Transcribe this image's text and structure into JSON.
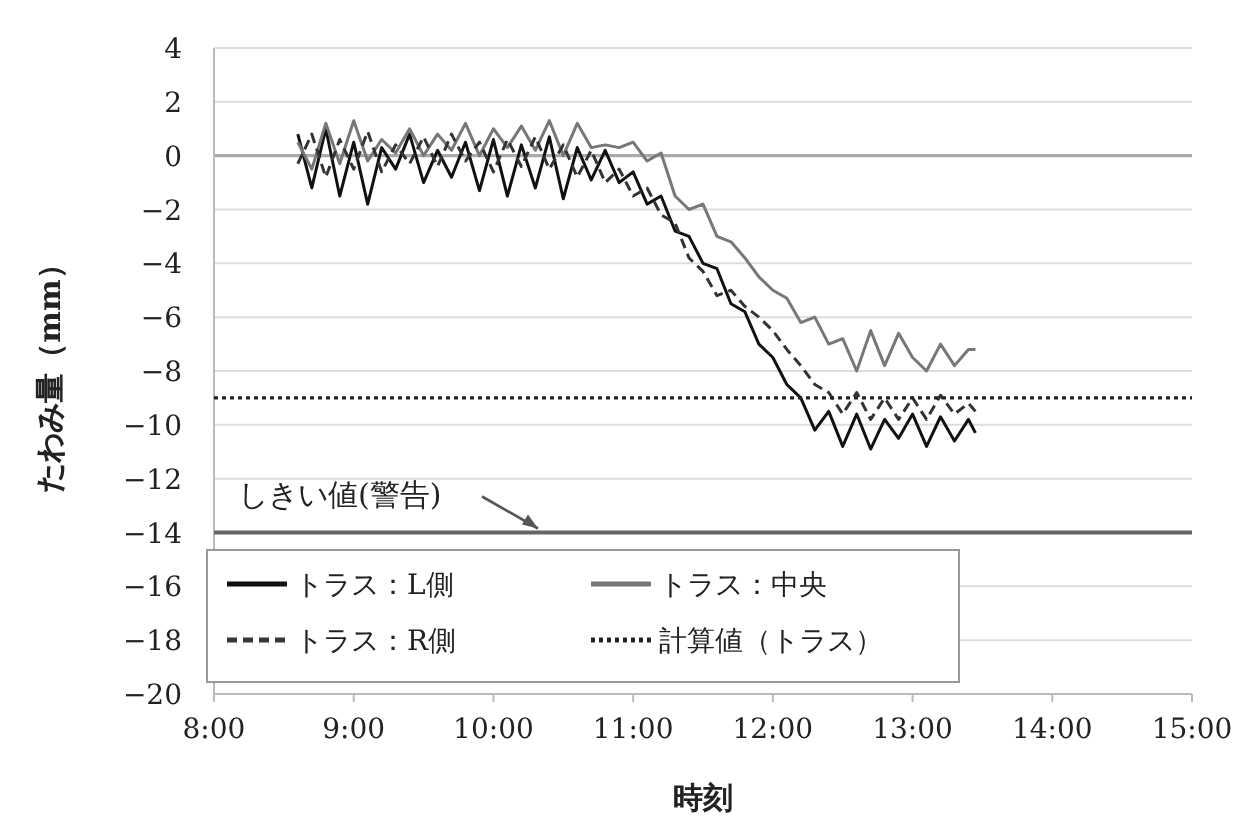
{
  "chart_data": {
    "type": "line",
    "xlabel": "時刻",
    "ylabel": "たわみ量（mm）",
    "xlim": [
      8,
      15
    ],
    "xticks": [
      {
        "value": 8,
        "label": "8:00"
      },
      {
        "value": 9,
        "label": "9:00"
      },
      {
        "value": 10,
        "label": "10:00"
      },
      {
        "value": 11,
        "label": "11:00"
      },
      {
        "value": 12,
        "label": "12:00"
      },
      {
        "value": 13,
        "label": "13:00"
      },
      {
        "value": 14,
        "label": "14:00"
      },
      {
        "value": 15,
        "label": "15:00"
      }
    ],
    "ylim": [
      -20,
      4
    ],
    "yticks": [
      -20,
      -18,
      -16,
      -14,
      -12,
      -10,
      -8,
      -6,
      -4,
      -2,
      0,
      2,
      4
    ],
    "grid": "y",
    "legend": "bottom",
    "x": [
      8.6,
      8.7,
      8.8,
      8.9,
      9.0,
      9.1,
      9.2,
      9.3,
      9.4,
      9.5,
      9.6,
      9.7,
      9.8,
      9.9,
      10.0,
      10.1,
      10.2,
      10.3,
      10.4,
      10.5,
      10.6,
      10.7,
      10.8,
      10.9,
      11.0,
      11.1,
      11.2,
      11.3,
      11.4,
      11.5,
      11.6,
      11.7,
      11.8,
      11.9,
      12.0,
      12.1,
      12.2,
      12.3,
      12.4,
      12.5,
      12.6,
      12.7,
      12.8,
      12.9,
      13.0,
      13.1,
      13.2,
      13.3,
      13.4,
      13.45
    ],
    "series": [
      {
        "name": "トラス：L側",
        "color": "#111111",
        "line_style": "solid",
        "values": [
          0.8,
          -1.2,
          1.0,
          -1.5,
          0.5,
          -1.8,
          0.3,
          -0.5,
          0.8,
          -1.0,
          0.2,
          -0.8,
          0.5,
          -1.3,
          0.6,
          -1.5,
          0.4,
          -1.2,
          0.7,
          -1.6,
          0.3,
          -0.9,
          0.2,
          -1.0,
          -0.6,
          -1.8,
          -1.5,
          -2.8,
          -3.0,
          -4.0,
          -4.2,
          -5.5,
          -5.8,
          -7.0,
          -7.5,
          -8.5,
          -9.0,
          -10.2,
          -9.5,
          -10.8,
          -9.6,
          -10.9,
          -9.8,
          -10.5,
          -9.6,
          -10.8,
          -9.7,
          -10.6,
          -9.8,
          -10.3
        ]
      },
      {
        "name": "トラス：中央",
        "color": "#777777",
        "line_style": "solid",
        "values": [
          0.5,
          -0.5,
          1.2,
          -0.3,
          1.3,
          -0.2,
          0.6,
          0.1,
          1.0,
          0.0,
          0.8,
          0.2,
          1.2,
          0.0,
          1.0,
          0.3,
          1.1,
          0.2,
          1.3,
          0.0,
          1.2,
          0.3,
          0.4,
          0.3,
          0.5,
          -0.2,
          0.1,
          -1.5,
          -2.0,
          -1.8,
          -3.0,
          -3.2,
          -3.8,
          -4.5,
          -5.0,
          -5.3,
          -6.2,
          -6.0,
          -7.0,
          -6.8,
          -8.0,
          -6.5,
          -7.8,
          -6.6,
          -7.5,
          -8.0,
          -7.0,
          -7.8,
          -7.2,
          -7.2
        ]
      },
      {
        "name": "トラス：R側",
        "color": "#333333",
        "line_style": "dashed",
        "values": [
          -0.3,
          0.8,
          -0.8,
          0.6,
          -0.5,
          0.9,
          -0.6,
          0.4,
          -0.3,
          0.7,
          -0.4,
          0.8,
          -0.2,
          0.5,
          -0.6,
          0.6,
          -0.4,
          0.7,
          -0.5,
          0.4,
          -0.8,
          0.2,
          -1.0,
          -0.5,
          -1.5,
          -1.2,
          -2.2,
          -2.5,
          -3.8,
          -4.3,
          -5.2,
          -5.0,
          -5.6,
          -6.0,
          -6.5,
          -7.2,
          -7.8,
          -8.5,
          -8.8,
          -9.6,
          -8.8,
          -9.8,
          -9.0,
          -9.8,
          -9.0,
          -9.8,
          -8.9,
          -9.6,
          -9.2,
          -9.5
        ]
      },
      {
        "name": "計算値（トラス）",
        "color": "#222222",
        "line_style": "dotted",
        "x": [
          8,
          15
        ],
        "values": [
          -9,
          -9
        ]
      }
    ],
    "ref_lines": [
      {
        "axis": "y",
        "value": -14,
        "label": "しきい値(警告)",
        "color": "#666666"
      }
    ]
  }
}
